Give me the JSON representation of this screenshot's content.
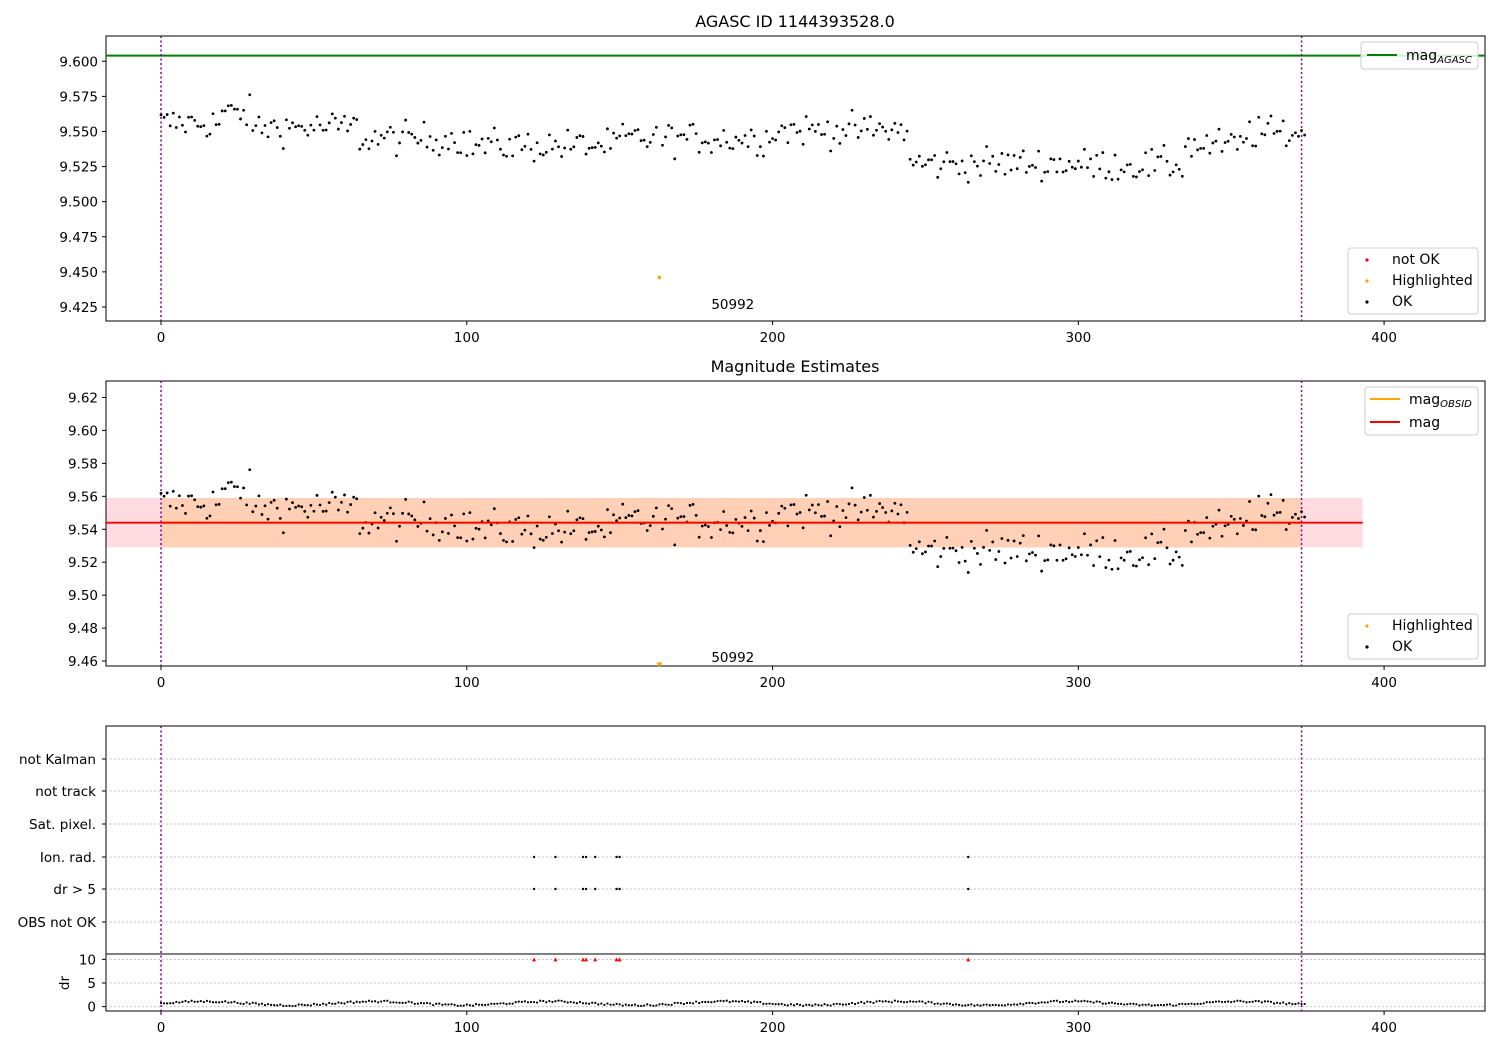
{
  "chart_data": [
    {
      "type": "scatter",
      "title": "AGASC ID 1144393528.0",
      "xlim": [
        -18,
        433
      ],
      "ylim": [
        9.415,
        9.618
      ],
      "xticks": [
        0,
        100,
        200,
        300,
        400
      ],
      "xtick_labels": [
        "0",
        "100",
        "200",
        "300",
        "400"
      ],
      "yticks": [
        9.425,
        9.45,
        9.475,
        9.5,
        9.525,
        9.55,
        9.575,
        9.6
      ],
      "ytick_labels": [
        "9.425",
        "9.450",
        "9.475",
        "9.500",
        "9.525",
        "9.550",
        "9.575",
        "9.600"
      ],
      "annotation": "50992",
      "annotation_pos": [
        187,
        9.427
      ],
      "vlines": [
        0,
        373
      ],
      "hline": {
        "name": "mag_AGASC",
        "value": 9.604,
        "color": "#008000"
      },
      "highlighted": [
        {
          "x": 163,
          "y": 9.446
        }
      ],
      "legend_upper": [
        {
          "label": "mag",
          "sub": "AGASC",
          "color": "#008000"
        }
      ],
      "legend_lower": [
        {
          "label": "not OK",
          "color": "#ff0000"
        },
        {
          "label": "Highlighted",
          "color": "#ffa500"
        },
        {
          "label": "OK",
          "color": "#000000"
        }
      ],
      "colors": {
        "ok": "#000000",
        "highlighted": "#ffa500",
        "not_ok": "#ff0000",
        "vline": "#7f00a0"
      }
    },
    {
      "type": "scatter",
      "title": "Magnitude Estimates",
      "xlim": [
        -18,
        433
      ],
      "ylim": [
        9.457,
        9.63
      ],
      "xticks": [
        0,
        100,
        200,
        300,
        400
      ],
      "xtick_labels": [
        "0",
        "100",
        "200",
        "300",
        "400"
      ],
      "yticks": [
        9.46,
        9.48,
        9.5,
        9.52,
        9.54,
        9.56,
        9.58,
        9.6,
        9.62
      ],
      "ytick_labels": [
        "9.46",
        "9.48",
        "9.50",
        "9.52",
        "9.54",
        "9.56",
        "9.58",
        "9.60",
        "9.62"
      ],
      "annotation": "50992",
      "annotation_pos": [
        187,
        9.4625
      ],
      "vlines": [
        0,
        373
      ],
      "mag": {
        "value": 9.544,
        "x_range": [
          -18,
          393
        ],
        "band": [
          9.529,
          9.559
        ],
        "color": "#ff0000"
      },
      "mag_obsid": {
        "value": 9.544,
        "x_range": [
          0,
          373
        ],
        "band": [
          9.529,
          9.559
        ],
        "color": "#ffa500"
      },
      "highlighted": [
        {
          "x": 163,
          "y": 9.458
        }
      ],
      "legend_upper": [
        {
          "label": "mag",
          "sub": "OBSID",
          "color": "#ffa500"
        },
        {
          "label": "mag",
          "sub": "",
          "color": "#ff0000"
        }
      ],
      "legend_lower": [
        {
          "label": "Highlighted",
          "color": "#ffa500"
        },
        {
          "label": "OK",
          "color": "#000000"
        }
      ]
    },
    {
      "type": "scatter",
      "title": "",
      "xlim": [
        -18,
        433
      ],
      "xticks": [
        0,
        100,
        200,
        300,
        400
      ],
      "xtick_labels": [
        "0",
        "100",
        "200",
        "300",
        "400"
      ],
      "flag_categories": [
        "not Kalman",
        "not track",
        "Sat. pixel.",
        "Ion. rad.",
        "dr > 5",
        "OBS not OK"
      ],
      "flags": {
        "Ion. rad.": [
          122,
          129,
          138,
          139,
          142,
          149,
          150,
          264
        ],
        "dr > 5": [
          122,
          129,
          138,
          139,
          142,
          149,
          150,
          264
        ]
      },
      "dr_ylabel": "dr",
      "dr_yticks": [
        0,
        5,
        10
      ],
      "dr_ylim": [
        -0.5,
        10.5
      ],
      "dr_outliers_x": [
        122,
        129,
        138,
        139,
        142,
        149,
        150,
        264
      ],
      "dr_outlier_value": 10,
      "vlines": [
        0,
        373
      ]
    }
  ]
}
